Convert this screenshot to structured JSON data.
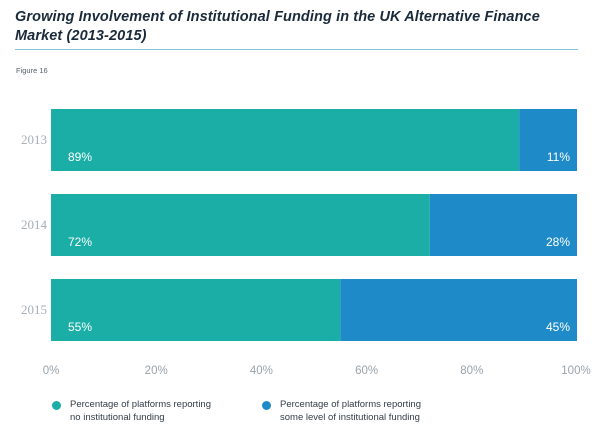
{
  "header": {
    "title": "Growing Involvement of Institutional Funding in the UK Alternative Finance Market (2013-2015)",
    "figure_label": "Figure 16"
  },
  "colors": {
    "no_institutional": "#1aaea6",
    "institutional": "#1e8bc8",
    "axis_text": "#9aa3ab",
    "year_text": "#a7afb6",
    "bar_label": "#ffffff"
  },
  "chart_data": {
    "type": "bar",
    "orientation": "horizontal",
    "stacked": true,
    "categories": [
      "2013",
      "2014",
      "2015"
    ],
    "series": [
      {
        "name": "Percentage of platforms reporting no institutional funding",
        "values": [
          89,
          72,
          55
        ],
        "labels": [
          "89%",
          "72%",
          "55%"
        ]
      },
      {
        "name": "Percentage of platforms reporting some level of institutional funding",
        "values": [
          11,
          28,
          45
        ],
        "labels": [
          "11%",
          "28%",
          "45%"
        ]
      }
    ],
    "x_ticks": [
      "0%",
      "20%",
      "40%",
      "60%",
      "80%",
      "100%"
    ],
    "xlim": [
      0,
      100
    ],
    "grid": false,
    "legend_position": "bottom"
  },
  "legend": {
    "items": [
      {
        "line1": "Percentage of platforms reporting",
        "line2": "no institutional funding"
      },
      {
        "line1": "Percentage of platforms reporting",
        "line2": "some level of institutional funding"
      }
    ]
  }
}
